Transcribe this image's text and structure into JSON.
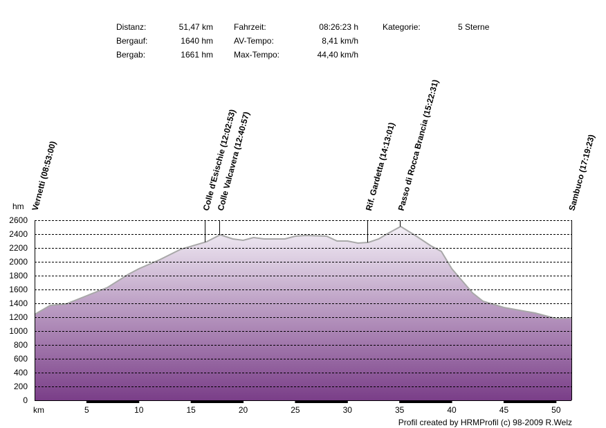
{
  "stats": {
    "distanz_label": "Distanz:",
    "distanz_value": "51,47 km",
    "bergauf_label": "Bergauf:",
    "bergauf_value": "1640 hm",
    "bergab_label": "Bergab:",
    "bergab_value": "1661 hm",
    "fahrzeit_label": "Fahrzeit:",
    "fahrzeit_value": "08:26:23 h",
    "avtempo_label": "AV-Tempo:",
    "avtempo_value": "8,41 km/h",
    "maxtempo_label": "Max-Tempo:",
    "maxtempo_value": "44,40 km/h",
    "kategorie_label": "Kategorie:",
    "kategorie_value": "5 Sterne"
  },
  "credit": "Profil created by HRMProfil (c) 98-2009 R.Welz",
  "chart_data": {
    "type": "area",
    "ylabel": "hm",
    "xlabel": "km",
    "xlim": [
      0,
      51.47
    ],
    "ylim": [
      0,
      2600
    ],
    "yticks": [
      0,
      200,
      400,
      600,
      800,
      1000,
      1200,
      1400,
      1600,
      1800,
      2000,
      2200,
      2400,
      2600
    ],
    "xticks": [
      5,
      10,
      15,
      20,
      25,
      30,
      35,
      40,
      45,
      50
    ],
    "grid": true,
    "colors": {
      "fill_top": "#f3eff6",
      "fill_bottom": "#7a3e88",
      "line": "#a8a8a8"
    },
    "x": [
      0,
      1.5,
      3,
      5,
      7,
      9,
      10,
      12,
      14,
      16.5,
      17.8,
      19,
      20,
      21,
      22,
      24,
      25,
      26,
      28,
      29,
      30,
      31,
      32,
      33,
      34,
      35.1,
      36.5,
      38,
      39,
      40,
      42,
      43,
      45,
      48,
      50,
      51.47
    ],
    "elevation": [
      1240,
      1370,
      1390,
      1510,
      1630,
      1820,
      1900,
      2030,
      2180,
      2290,
      2390,
      2330,
      2310,
      2350,
      2330,
      2330,
      2370,
      2380,
      2370,
      2300,
      2300,
      2270,
      2280,
      2330,
      2420,
      2510,
      2380,
      2230,
      2150,
      1900,
      1550,
      1430,
      1340,
      1260,
      1180,
      1190
    ],
    "waypoints": [
      {
        "label": "Vernetti (08:53:00)",
        "km": 0
      },
      {
        "label": "Colle d'Esischie (12:02:53)",
        "km": 16.4
      },
      {
        "label": "Colle Valcavera (12:40:57)",
        "km": 17.8
      },
      {
        "label": "Rif. Gardetta (14:13:01)",
        "km": 32.0
      },
      {
        "label": "Passo di Rocca Brancia (15:22:31)",
        "km": 35.1
      },
      {
        "label": "Sambuco (17:19:23)",
        "km": 51.47
      }
    ]
  }
}
